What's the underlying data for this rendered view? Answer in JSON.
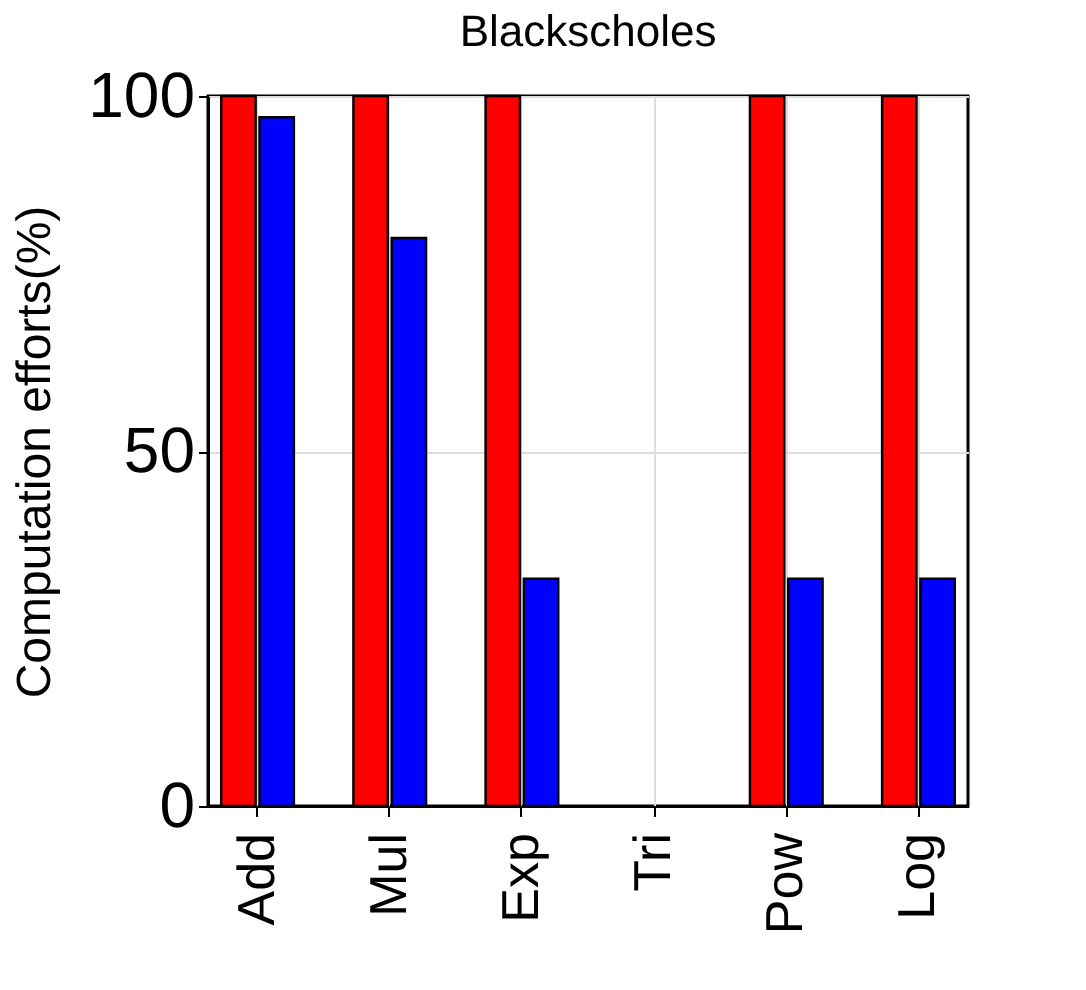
{
  "chart_data": {
    "type": "bar",
    "title": "Blackscholes",
    "ylabel": "Computation efforts(%)",
    "categories": [
      "Add",
      "Mul",
      "Exp",
      "Tri",
      "Pow",
      "Log"
    ],
    "series": [
      {
        "color": "#ff0000",
        "values": [
          100,
          100,
          100,
          null,
          100,
          100
        ]
      },
      {
        "color": "#0000ff",
        "values": [
          97,
          80,
          32,
          null,
          32,
          32
        ]
      }
    ],
    "ylim": [
      0,
      100
    ],
    "yticks": [
      0,
      50,
      100
    ],
    "grid": true,
    "legend": false
  }
}
